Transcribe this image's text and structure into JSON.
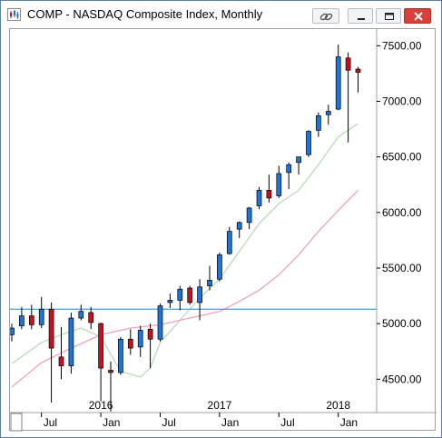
{
  "window": {
    "title": "COMP - NASDAQ Composite Index, Monthly",
    "icon": "chart-icon",
    "buttons": [
      "link-icon",
      "minimize-icon",
      "restore-icon",
      "close-icon"
    ]
  },
  "colors": {
    "up": "#1e74d8",
    "down": "#c8101e",
    "wick": "#000000",
    "ma_short": "#b8dcb8",
    "ma_long": "#f2a0c4",
    "hline": "#3fa0e0",
    "close_button": "#d9403a"
  },
  "chart_data": {
    "type": "candlestick",
    "title": "COMP - NASDAQ Composite Index, Monthly",
    "y_axis": {
      "position": "right",
      "range": [
        4200,
        7650
      ],
      "ticks": [
        "4500.00",
        "5000.00",
        "5500.00",
        "6000.00",
        "6500.00",
        "7000.00",
        "7500.00"
      ]
    },
    "x_axis": {
      "month_labels": [
        {
          "label": "Jul",
          "index": 3
        },
        {
          "label": "Jan",
          "index": 9
        },
        {
          "label": "Jul",
          "index": 15
        },
        {
          "label": "Jan",
          "index": 21
        },
        {
          "label": "Jul",
          "index": 27
        },
        {
          "label": "Jan",
          "index": 33
        }
      ],
      "year_labels": [
        {
          "label": "2016",
          "index": 9
        },
        {
          "label": "2017",
          "index": 21
        },
        {
          "label": "2018",
          "index": 33
        }
      ]
    },
    "horizontal_line": 5130,
    "candles": [
      {
        "date": "2015-04",
        "open": 4900,
        "high": 5000,
        "low": 4840,
        "close": 4960
      },
      {
        "date": "2015-05",
        "open": 4980,
        "high": 5150,
        "low": 4950,
        "close": 5070
      },
      {
        "date": "2015-06",
        "open": 5070,
        "high": 5170,
        "low": 4950,
        "close": 4990
      },
      {
        "date": "2015-07",
        "open": 4990,
        "high": 5240,
        "low": 4960,
        "close": 5130
      },
      {
        "date": "2015-08",
        "open": 5130,
        "high": 5190,
        "low": 4290,
        "close": 4780
      },
      {
        "date": "2015-09",
        "open": 4700,
        "high": 4970,
        "low": 4500,
        "close": 4620
      },
      {
        "date": "2015-10",
        "open": 4620,
        "high": 5100,
        "low": 4550,
        "close": 5050
      },
      {
        "date": "2015-11",
        "open": 5050,
        "high": 5170,
        "low": 5030,
        "close": 5110
      },
      {
        "date": "2015-12",
        "open": 5100,
        "high": 5150,
        "low": 4950,
        "close": 5010
      },
      {
        "date": "2016-01",
        "open": 5000,
        "high": 5010,
        "low": 4300,
        "close": 4600
      },
      {
        "date": "2016-02",
        "open": 4580,
        "high": 4660,
        "low": 4210,
        "close": 4560
      },
      {
        "date": "2016-03",
        "open": 4560,
        "high": 4880,
        "low": 4540,
        "close": 4860
      },
      {
        "date": "2016-04",
        "open": 4860,
        "high": 4950,
        "low": 4720,
        "close": 4780
      },
      {
        "date": "2016-05",
        "open": 4790,
        "high": 4980,
        "low": 4700,
        "close": 4940
      },
      {
        "date": "2016-06",
        "open": 4950,
        "high": 5000,
        "low": 4600,
        "close": 4860
      },
      {
        "date": "2016-07",
        "open": 4860,
        "high": 5180,
        "low": 4840,
        "close": 5160
      },
      {
        "date": "2016-08",
        "open": 5190,
        "high": 5270,
        "low": 5140,
        "close": 5210
      },
      {
        "date": "2016-09",
        "open": 5210,
        "high": 5340,
        "low": 5120,
        "close": 5310
      },
      {
        "date": "2016-10",
        "open": 5320,
        "high": 5340,
        "low": 5170,
        "close": 5190
      },
      {
        "date": "2016-11",
        "open": 5190,
        "high": 5400,
        "low": 5030,
        "close": 5330
      },
      {
        "date": "2016-12",
        "open": 5340,
        "high": 5520,
        "low": 5300,
        "close": 5390
      },
      {
        "date": "2017-01",
        "open": 5400,
        "high": 5640,
        "low": 5380,
        "close": 5620
      },
      {
        "date": "2017-02",
        "open": 5630,
        "high": 5870,
        "low": 5620,
        "close": 5830
      },
      {
        "date": "2017-03",
        "open": 5850,
        "high": 5920,
        "low": 5770,
        "close": 5910
      },
      {
        "date": "2017-04",
        "open": 5910,
        "high": 6050,
        "low": 5850,
        "close": 6040
      },
      {
        "date": "2017-05",
        "open": 6060,
        "high": 6230,
        "low": 6030,
        "close": 6200
      },
      {
        "date": "2017-06",
        "open": 6200,
        "high": 6340,
        "low": 6090,
        "close": 6130
      },
      {
        "date": "2017-07",
        "open": 6150,
        "high": 6420,
        "low": 6130,
        "close": 6350
      },
      {
        "date": "2017-08",
        "open": 6360,
        "high": 6450,
        "low": 6210,
        "close": 6430
      },
      {
        "date": "2017-09",
        "open": 6450,
        "high": 6500,
        "low": 6340,
        "close": 6500
      },
      {
        "date": "2017-10",
        "open": 6520,
        "high": 6740,
        "low": 6500,
        "close": 6730
      },
      {
        "date": "2017-11",
        "open": 6740,
        "high": 6900,
        "low": 6680,
        "close": 6870
      },
      {
        "date": "2017-12",
        "open": 6880,
        "high": 6970,
        "low": 6790,
        "close": 6910
      },
      {
        "date": "2018-01",
        "open": 6930,
        "high": 7510,
        "low": 6920,
        "close": 7400
      },
      {
        "date": "2018-02",
        "open": 7390,
        "high": 7440,
        "low": 6630,
        "close": 7280
      },
      {
        "date": "2018-03",
        "open": 7290,
        "high": 7310,
        "low": 7080,
        "close": 7260
      }
    ],
    "ma_short": [
      [
        0,
        4640
      ],
      [
        3,
        4830
      ],
      [
        5,
        4900
      ],
      [
        7,
        4960
      ],
      [
        9,
        4880
      ],
      [
        11,
        4570
      ],
      [
        13,
        4520
      ],
      [
        14,
        4600
      ],
      [
        15,
        4830
      ],
      [
        17,
        5030
      ],
      [
        19,
        5230
      ],
      [
        21,
        5400
      ],
      [
        23,
        5650
      ],
      [
        25,
        5900
      ],
      [
        27,
        6080
      ],
      [
        29,
        6200
      ],
      [
        31,
        6430
      ],
      [
        33,
        6680
      ],
      [
        35,
        6800
      ]
    ],
    "ma_long": [
      [
        0,
        4430
      ],
      [
        3,
        4650
      ],
      [
        6,
        4780
      ],
      [
        9,
        4900
      ],
      [
        12,
        4960
      ],
      [
        15,
        4990
      ],
      [
        18,
        5050
      ],
      [
        21,
        5110
      ],
      [
        23,
        5200
      ],
      [
        25,
        5300
      ],
      [
        27,
        5440
      ],
      [
        29,
        5620
      ],
      [
        31,
        5830
      ],
      [
        33,
        6020
      ],
      [
        35,
        6200
      ]
    ]
  }
}
